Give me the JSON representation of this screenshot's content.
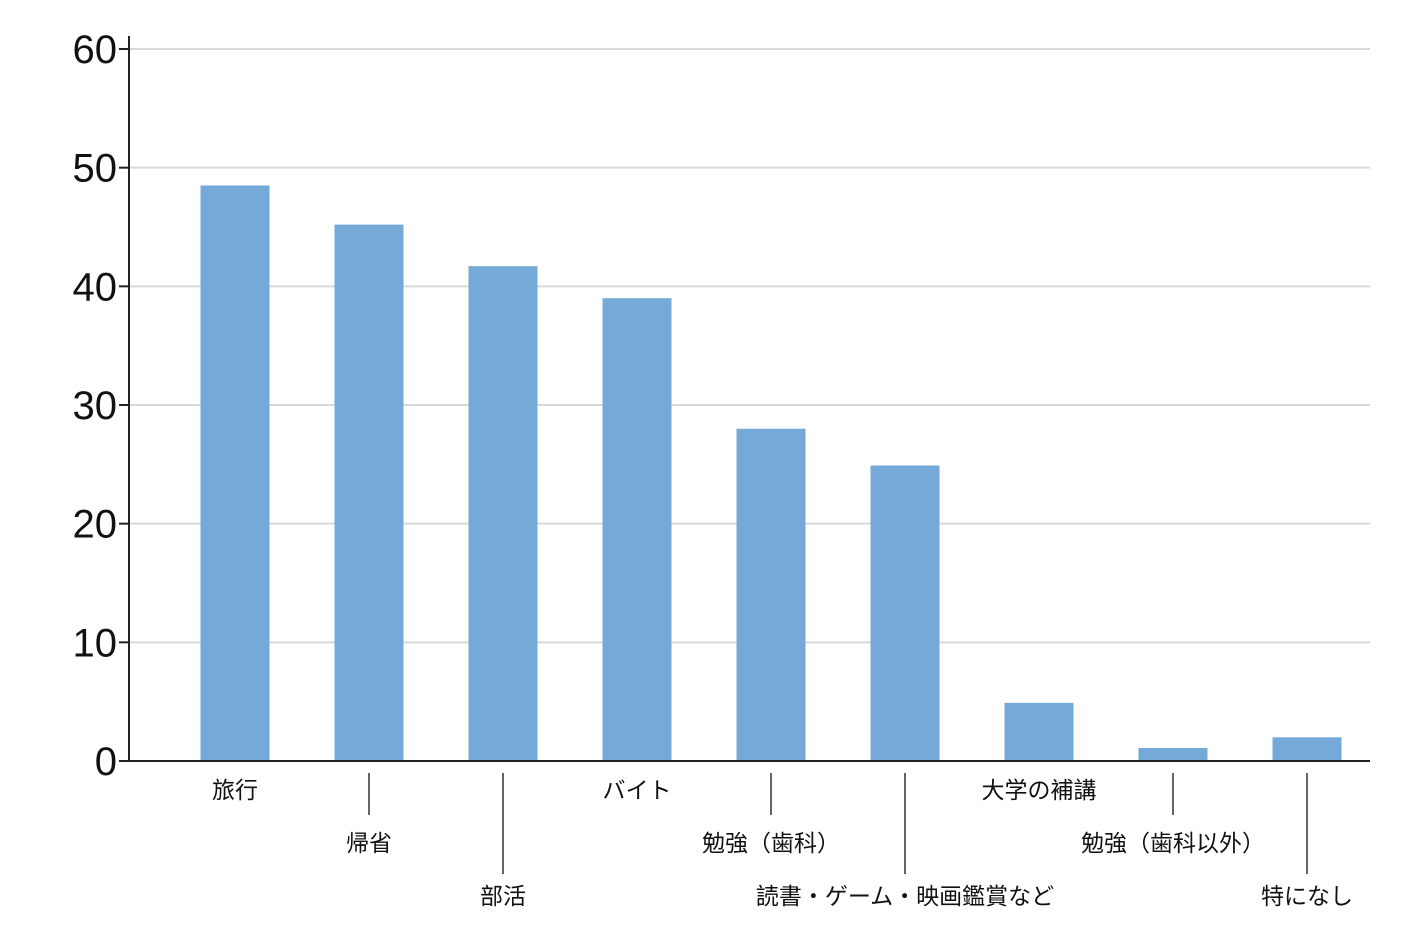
{
  "chart_data": {
    "type": "bar",
    "title": "",
    "xlabel": "",
    "ylabel": "",
    "categories": [
      "旅行",
      "帰省",
      "部活",
      "バイト",
      "勉強（歯科）",
      "読書・ゲーム・映画鑑賞など",
      "大学の補講",
      "勉強（歯科以外）",
      "特になし"
    ],
    "series": [
      {
        "values": [
          48.5,
          45.2,
          41.7,
          39.0,
          28.0,
          24.9,
          4.9,
          1.1,
          2.0
        ]
      }
    ],
    "ylim": [
      0,
      60
    ],
    "yticks": [
      0,
      10,
      20,
      30,
      40,
      50,
      60
    ],
    "grid": true,
    "legend": "none",
    "colors": {
      "bar": "#75a9d8",
      "grid": "#d9d9d9",
      "axis": "#222222",
      "text": "#111111"
    }
  }
}
